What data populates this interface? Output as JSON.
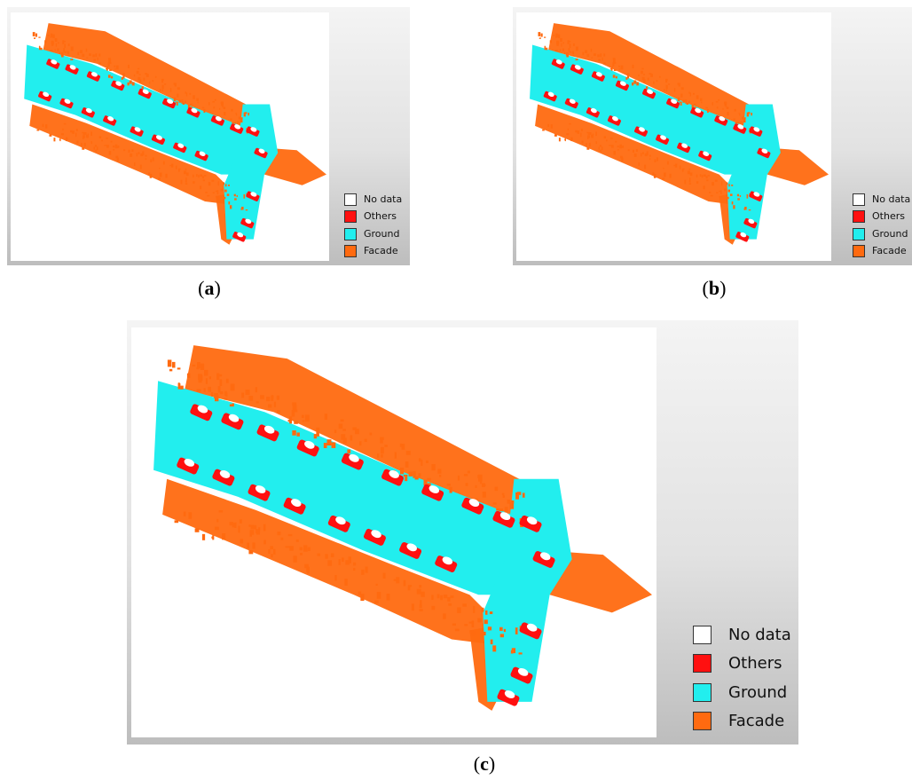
{
  "figure": {
    "captions": {
      "a": "a",
      "b": "b",
      "c": "c"
    },
    "legend": {
      "items": [
        {
          "label": "No data",
          "color": "#ffffff"
        },
        {
          "label": "Others",
          "color": "#ff1010"
        },
        {
          "label": "Ground",
          "color": "#22eeee"
        },
        {
          "label": "Facade",
          "color": "#ff6a10"
        }
      ]
    },
    "colors": {
      "ground": "#22eeee",
      "facade": "#ff6a10",
      "others": "#ff1010",
      "canvas": "#ffffff",
      "panel_gradient": [
        "#f4f4f4",
        "#bdbdbd"
      ]
    }
  }
}
